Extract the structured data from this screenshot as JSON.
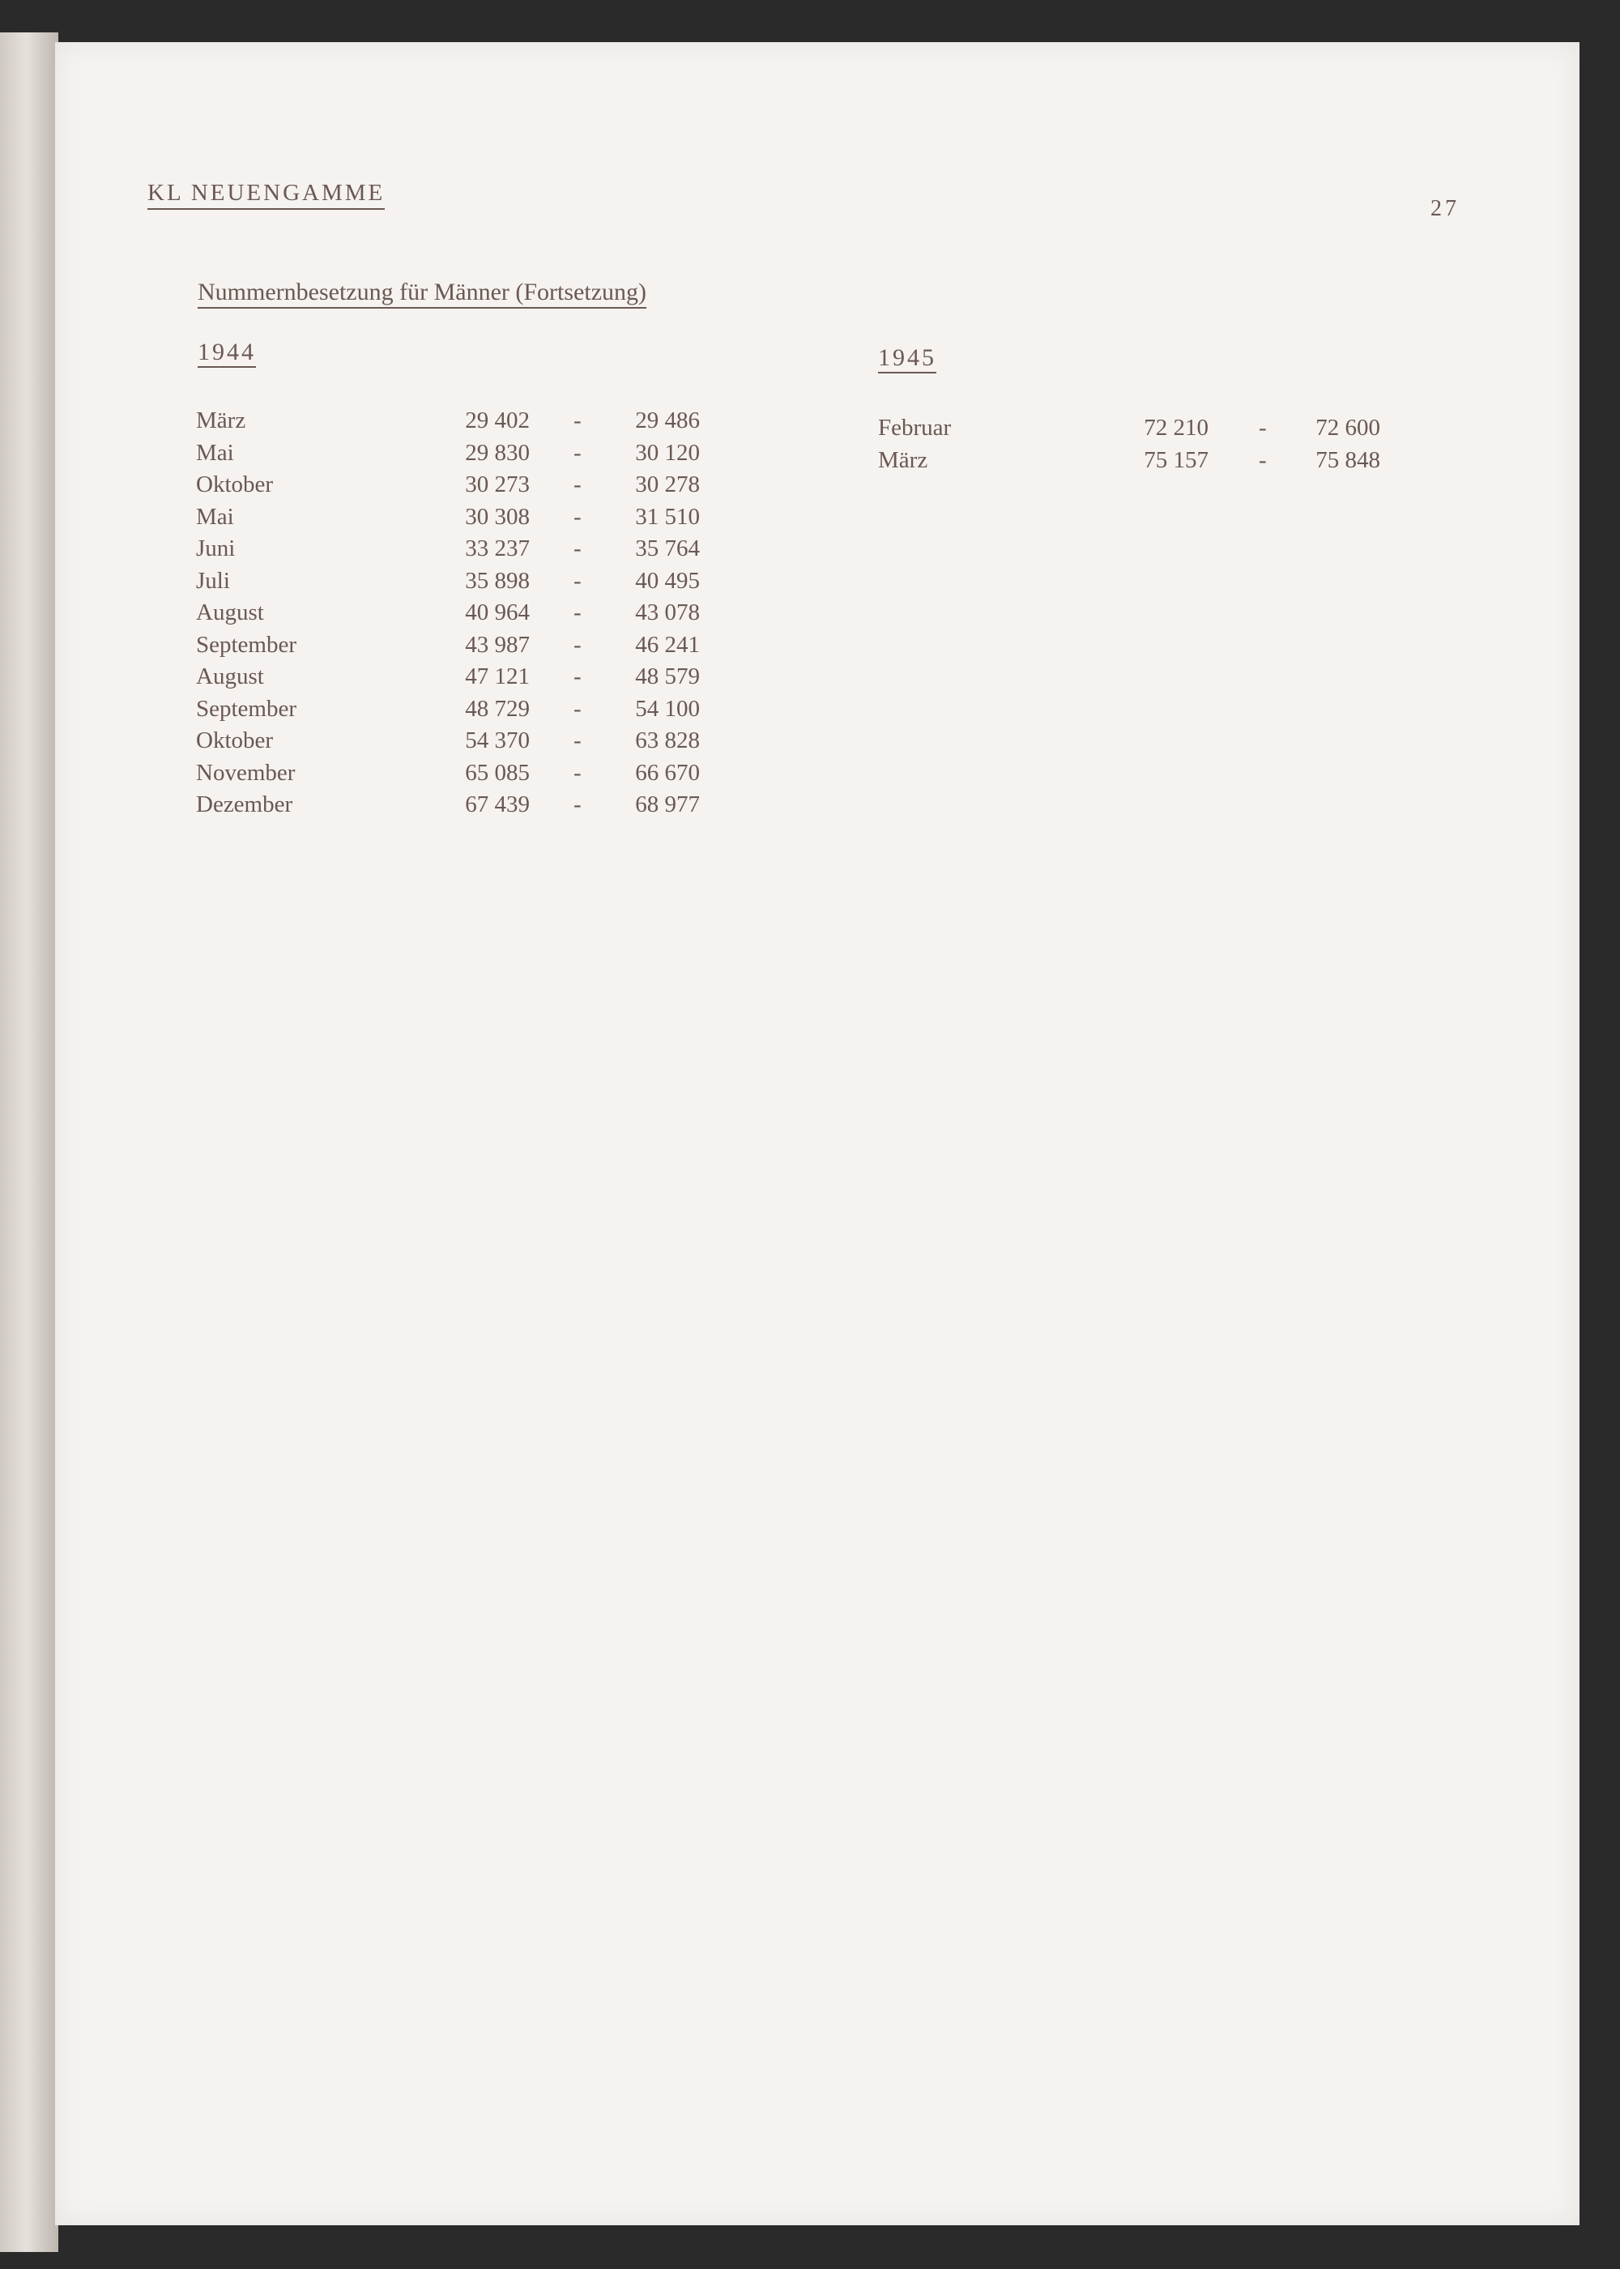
{
  "header": {
    "title": "KL   NEUENGAMME",
    "page_number": "27"
  },
  "section_title": "Nummernbesetzung für Männer (Fortsetzung)",
  "tables": [
    {
      "year": "1944",
      "rows": [
        {
          "month": "März",
          "from": "29 402",
          "to": "29 486"
        },
        {
          "month": "Mai",
          "from": "29 830",
          "to": "30 120"
        },
        {
          "month": "Oktober",
          "from": "30 273",
          "to": "30 278"
        },
        {
          "month": "Mai",
          "from": "30 308",
          "to": "31 510"
        },
        {
          "month": "Juni",
          "from": "33 237",
          "to": "35 764"
        },
        {
          "month": "Juli",
          "from": "35 898",
          "to": "40 495"
        },
        {
          "month": "August",
          "from": "40 964",
          "to": "43 078"
        },
        {
          "month": "September",
          "from": "43 987",
          "to": "46 241"
        },
        {
          "month": "August",
          "from": "47 121",
          "to": "48 579"
        },
        {
          "month": "September",
          "from": "48 729",
          "to": "54 100"
        },
        {
          "month": "Oktober",
          "from": "54 370",
          "to": "63 828"
        },
        {
          "month": "November",
          "from": "65 085",
          "to": "66 670"
        },
        {
          "month": "Dezember",
          "from": "67 439",
          "to": "68 977"
        }
      ]
    },
    {
      "year": "1945",
      "rows": [
        {
          "month": "Februar",
          "from": "72 210",
          "to": "72 600"
        },
        {
          "month": "März",
          "from": "75 157",
          "to": "75 848"
        }
      ]
    }
  ],
  "separator": "-"
}
